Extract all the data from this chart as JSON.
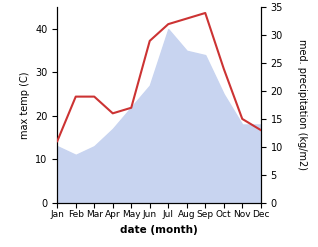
{
  "months": [
    "Jan",
    "Feb",
    "Mar",
    "Apr",
    "May",
    "Jun",
    "Jul",
    "Aug",
    "Sep",
    "Oct",
    "Nov",
    "Dec"
  ],
  "max_temp": [
    13,
    11,
    13,
    17,
    22,
    27,
    40,
    35,
    34,
    25,
    18,
    18
  ],
  "precipitation": [
    11,
    19,
    19,
    16,
    17,
    29,
    32,
    33,
    34,
    24,
    15,
    13
  ],
  "temp_ylim": [
    0,
    45
  ],
  "precip_ylim": [
    0,
    35
  ],
  "temp_color": "#c8d4f0",
  "line_color": "#cc3333",
  "ylabel_left": "max temp (C)",
  "ylabel_right": "med. precipitation (kg/m2)",
  "xlabel": "date (month)",
  "left_yticks": [
    0,
    10,
    20,
    30,
    40
  ],
  "right_yticks": [
    0,
    5,
    10,
    15,
    20,
    25,
    30,
    35
  ],
  "background": "#ffffff"
}
